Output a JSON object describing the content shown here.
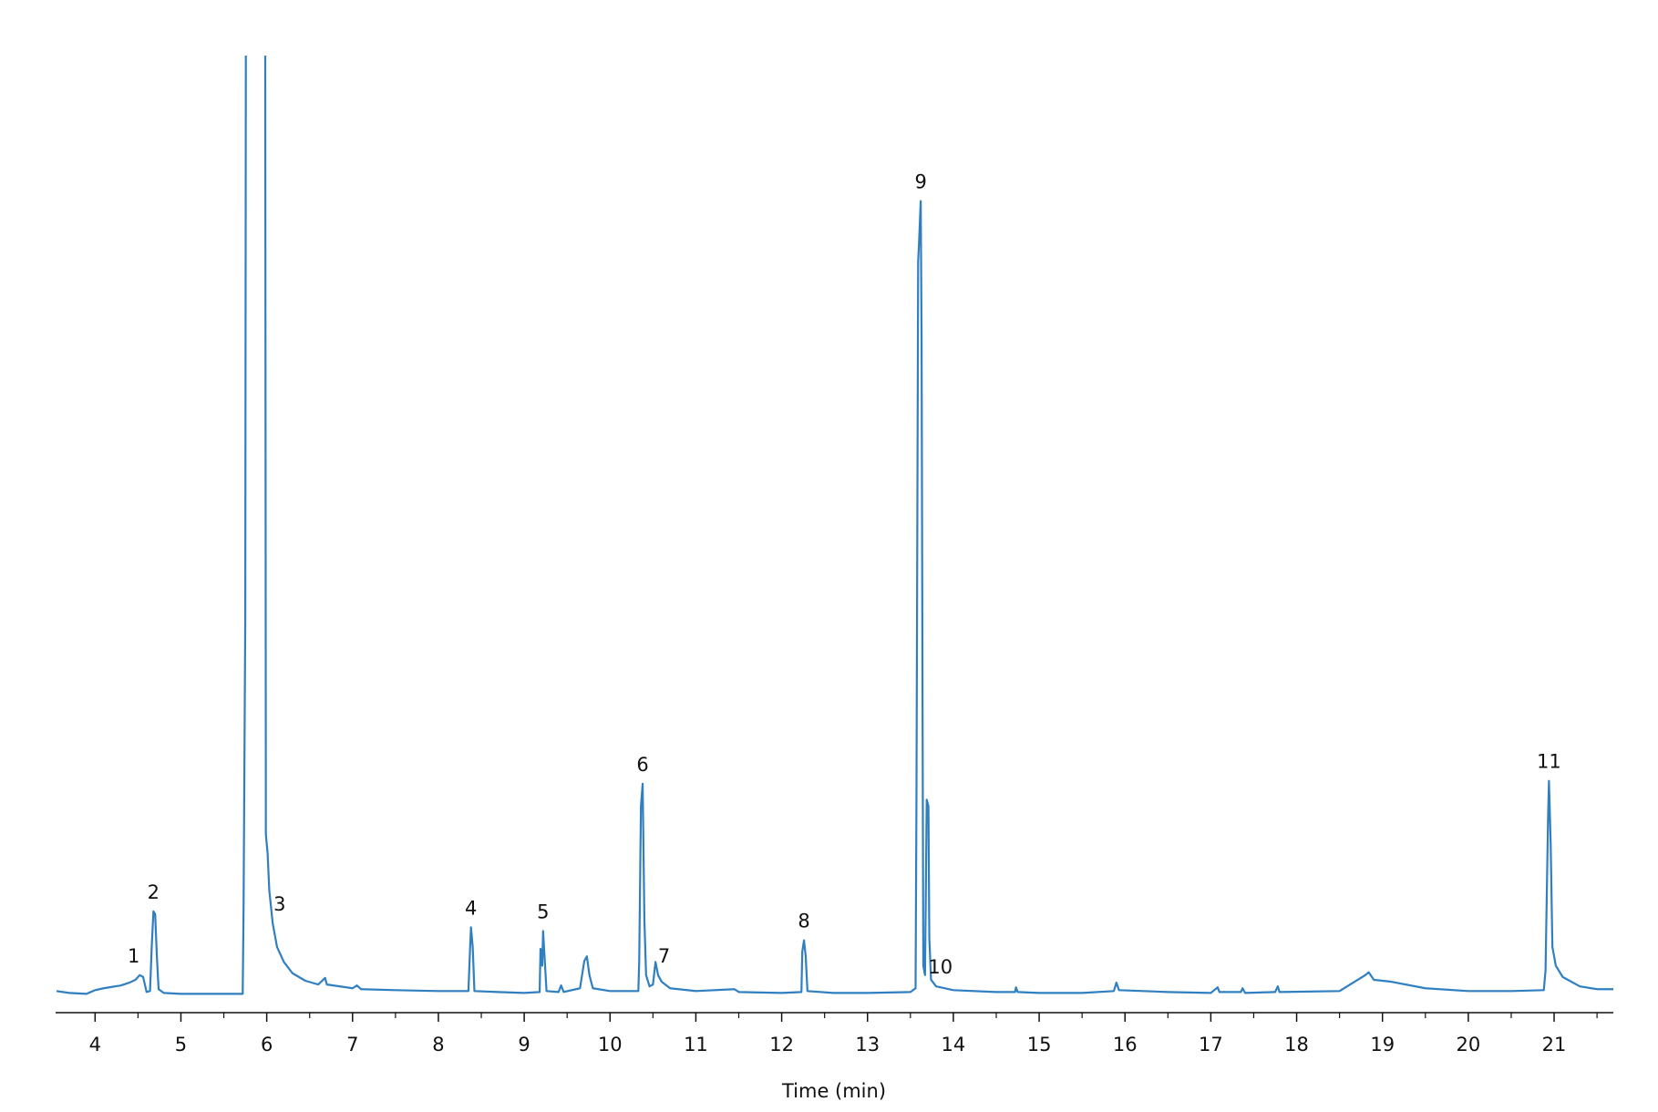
{
  "chart_data": {
    "type": "line",
    "x_label": "Time (min)",
    "color": "#2f7fc1",
    "xlim": [
      3.54,
      21.69
    ],
    "ylim": [
      -2,
      100
    ],
    "xticks": [
      4,
      5,
      6,
      7,
      8,
      9,
      10,
      11,
      12,
      13,
      14,
      15,
      16,
      17,
      18,
      19,
      20,
      21
    ],
    "xminorticks": [
      4.5,
      5.5,
      6.5,
      7.5,
      8.5,
      9.5,
      10.5,
      11.5,
      12.5,
      13.5,
      14.5,
      15.5,
      16.5,
      17.5,
      18.5,
      19.5,
      20.5,
      21.5
    ],
    "x": [
      3.55,
      3.7,
      3.9,
      4.0,
      4.1,
      4.3,
      4.4,
      4.47,
      4.52,
      4.56,
      4.6,
      4.64,
      4.66,
      4.68,
      4.7,
      4.72,
      4.74,
      4.8,
      5.0,
      5.3,
      5.6,
      5.72,
      5.73,
      5.75,
      5.76,
      5.98,
      5.99,
      6.01,
      6.03,
      6.07,
      6.12,
      6.2,
      6.3,
      6.45,
      6.6,
      6.68,
      6.7,
      7.0,
      7.05,
      7.1,
      7.5,
      8.0,
      8.35,
      8.37,
      8.38,
      8.4,
      8.42,
      8.7,
      9.0,
      9.18,
      9.19,
      9.21,
      9.22,
      9.24,
      9.26,
      9.4,
      9.43,
      9.46,
      9.65,
      9.7,
      9.73,
      9.76,
      9.8,
      10.0,
      10.33,
      10.34,
      10.36,
      10.38,
      10.4,
      10.42,
      10.46,
      10.5,
      10.53,
      10.56,
      10.6,
      10.7,
      11.0,
      11.45,
      11.5,
      12.0,
      12.23,
      12.24,
      12.26,
      12.28,
      12.3,
      12.6,
      13.0,
      13.5,
      13.56,
      13.57,
      13.59,
      13.6,
      13.62,
      13.63,
      13.64,
      13.65,
      13.67,
      13.69,
      13.71,
      13.72,
      13.74,
      13.8,
      14.0,
      14.5,
      14.72,
      14.73,
      14.75,
      15.0,
      15.5,
      15.87,
      15.9,
      15.93,
      16.5,
      17.0,
      17.08,
      17.1,
      17.35,
      17.37,
      17.4,
      17.75,
      17.78,
      17.8,
      18.5,
      18.8,
      18.84,
      18.9,
      19.1,
      19.5,
      20.0,
      20.5,
      20.88,
      20.9,
      20.93,
      20.94,
      20.96,
      20.98,
      21.02,
      21.1,
      21.3,
      21.5,
      21.69
    ],
    "values": [
      0.3,
      0.1,
      0,
      0.4,
      0.6,
      0.9,
      1.2,
      1.5,
      2.0,
      1.8,
      0.2,
      0.3,
      5,
      8.8,
      8.5,
      4,
      0.5,
      0.1,
      0,
      0,
      0,
      0,
      9,
      40,
      130,
      130,
      17,
      15,
      11,
      7.5,
      5,
      3.4,
      2.2,
      1.4,
      1.0,
      1.7,
      1.0,
      0.6,
      0.9,
      0.5,
      0.4,
      0.3,
      0.3,
      5,
      7.1,
      5,
      0.3,
      0.2,
      0.1,
      0.2,
      4.8,
      3,
      6.7,
      3.5,
      0.3,
      0.2,
      0.9,
      0.2,
      0.6,
      3.5,
      4.0,
      2,
      0.6,
      0.3,
      0.3,
      3.5,
      20,
      22.4,
      8,
      2,
      0.8,
      1,
      3.4,
      2,
      1.3,
      0.6,
      0.3,
      0.5,
      0.2,
      0.1,
      0.2,
      4.5,
      5.7,
      4,
      0.3,
      0.1,
      0.1,
      0.2,
      0.6,
      20,
      78,
      80,
      84.5,
      70,
      35,
      3,
      2,
      20.7,
      20,
      6,
      1.5,
      0.8,
      0.4,
      0.2,
      0.2,
      0.7,
      0.2,
      0.1,
      0.1,
      0.3,
      1.2,
      0.4,
      0.2,
      0.1,
      0.7,
      0.2,
      0.2,
      0.6,
      0.1,
      0.2,
      0.8,
      0.2,
      0.3,
      2.0,
      2.3,
      1.5,
      1.3,
      0.6,
      0.3,
      0.3,
      0.4,
      2.5,
      19,
      22.7,
      16,
      5,
      3,
      1.8,
      0.8,
      0.5,
      0.5
    ],
    "annotations": [
      {
        "text": "1",
        "x": 4.45
      },
      {
        "text": "2",
        "x": 4.68
      },
      {
        "text": "3",
        "x": 6.15
      },
      {
        "text": "4",
        "x": 8.38
      },
      {
        "text": "5",
        "x": 9.22
      },
      {
        "text": "6",
        "x": 10.38
      },
      {
        "text": "7",
        "x": 10.63
      },
      {
        "text": "8",
        "x": 12.26
      },
      {
        "text": "9",
        "x": 13.62
      },
      {
        "text": "10",
        "x": 13.85
      },
      {
        "text": "11",
        "x": 20.94
      }
    ]
  }
}
